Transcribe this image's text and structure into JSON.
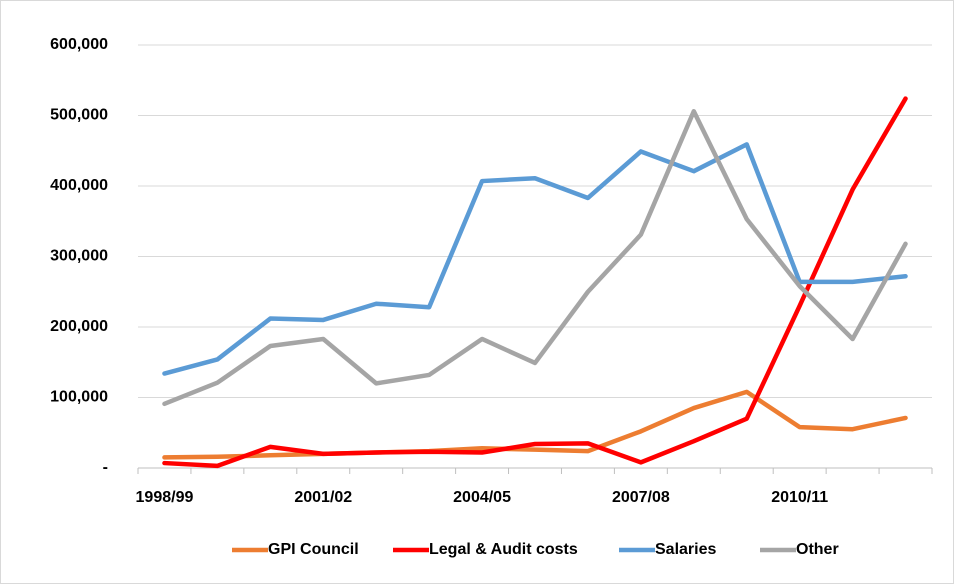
{
  "chart_data": {
    "type": "line",
    "categories": [
      "1998/99",
      null,
      null,
      "2001/02",
      null,
      null,
      "2004/05",
      null,
      null,
      "2007/08",
      null,
      null,
      "2010/11",
      null,
      null
    ],
    "series": [
      {
        "name": "GPI Council",
        "color": "#ed7d31",
        "values": [
          15000,
          16000,
          18000,
          20000,
          22000,
          24000,
          28000,
          26000,
          24000,
          52000,
          85000,
          108000,
          58000,
          55000,
          71000
        ]
      },
      {
        "name": "Legal & Audit costs",
        "color": "#ff0000",
        "values": [
          7000,
          3000,
          30000,
          20000,
          22000,
          23000,
          22000,
          34000,
          35000,
          8000,
          38000,
          70000,
          230000,
          395000,
          524000
        ]
      },
      {
        "name": "Salaries",
        "color": "#5b9bd5",
        "values": [
          134000,
          154000,
          212000,
          210000,
          233000,
          228000,
          407000,
          411000,
          383000,
          449000,
          421000,
          459000,
          264000,
          264000,
          272000
        ]
      },
      {
        "name": "Other",
        "color": "#a5a5a5",
        "values": [
          91000,
          121000,
          173000,
          183000,
          120000,
          132000,
          183000,
          149000,
          250000,
          331000,
          506000,
          353000,
          258000,
          183000,
          318000
        ]
      }
    ],
    "ylim": [
      0,
      600000
    ],
    "yticks": [
      {
        "value": 0,
        "label": "-"
      },
      {
        "value": 100000,
        "label": "100,000"
      },
      {
        "value": 200000,
        "label": "200,000"
      },
      {
        "value": 300000,
        "label": "300,000"
      },
      {
        "value": 400000,
        "label": "400,000"
      },
      {
        "value": 500000,
        "label": "500,000"
      },
      {
        "value": 600000,
        "label": "600,000"
      }
    ],
    "grid": true,
    "legend": "bottom"
  }
}
